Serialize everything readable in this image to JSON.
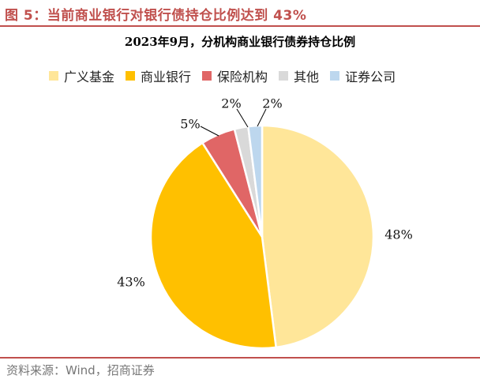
{
  "figure": {
    "title": "图 5：当前商业银行对银行债持仓比例达到 43%",
    "source": "资料来源：Wind，招商证券"
  },
  "chart_data": {
    "type": "pie",
    "title": "2023年9月，分机构商业银行债券持仓比例",
    "legend_position": "top",
    "start_angle_deg": 0,
    "direction": "clockwise",
    "series": [
      {
        "name": "广义基金",
        "value": 48,
        "label": "48%",
        "color": "#FFE699"
      },
      {
        "name": "商业银行",
        "value": 43,
        "label": "43%",
        "color": "#FFC000"
      },
      {
        "name": "保险机构",
        "value": 5,
        "label": "5%",
        "color": "#E06666"
      },
      {
        "name": "其他",
        "value": 2,
        "label": "2%",
        "color": "#D9D9D9"
      },
      {
        "name": "证券公司",
        "value": 2,
        "label": "2%",
        "color": "#BDD7EE"
      }
    ]
  }
}
